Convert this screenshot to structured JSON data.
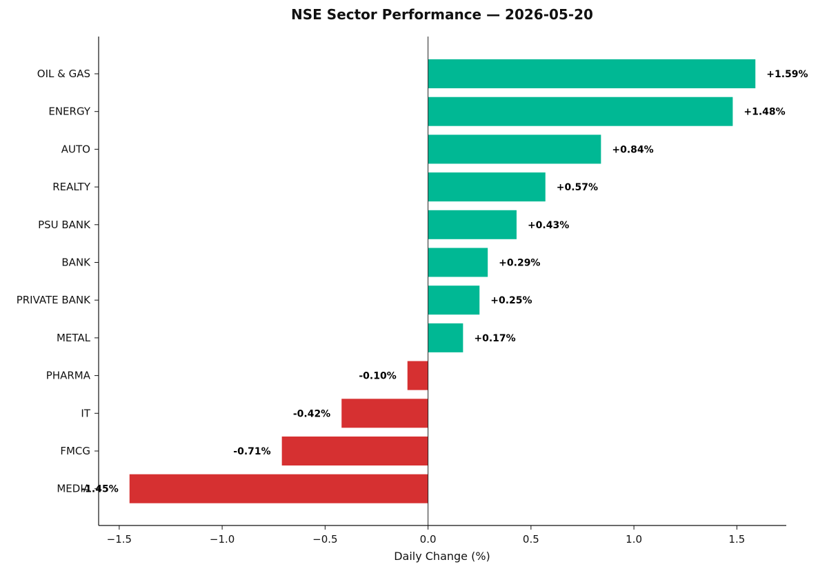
{
  "chart_data": {
    "type": "bar",
    "orientation": "horizontal",
    "title": "NSE Sector Performance — 2026-05-20",
    "xlabel": "Daily Change (%)",
    "ylabel": "",
    "xlim": [
      -1.6,
      1.74
    ],
    "xticks": [
      -1.5,
      -1.0,
      -0.5,
      0.0,
      0.5,
      1.0,
      1.5
    ],
    "xtick_labels": [
      "−1.5",
      "−1.0",
      "−0.5",
      "0.0",
      "0.5",
      "1.0",
      "1.5"
    ],
    "grid": false,
    "categories": [
      "OIL & GAS",
      "ENERGY",
      "AUTO",
      "REALTY",
      "PSU BANK",
      "BANK",
      "PRIVATE BANK",
      "METAL",
      "PHARMA",
      "IT",
      "FMCG",
      "MEDIA"
    ],
    "values": [
      1.59,
      1.48,
      0.84,
      0.57,
      0.43,
      0.29,
      0.25,
      0.17,
      -0.1,
      -0.42,
      -0.71,
      -1.45
    ],
    "data_labels": [
      "+1.59%",
      "+1.48%",
      "+0.84%",
      "+0.57%",
      "+0.43%",
      "+0.29%",
      "+0.25%",
      "+0.17%",
      "-0.10%",
      "-0.42%",
      "-0.71%",
      "-1.45%"
    ],
    "colors": {
      "positive": "#00b894",
      "negative": "#d63031"
    }
  }
}
